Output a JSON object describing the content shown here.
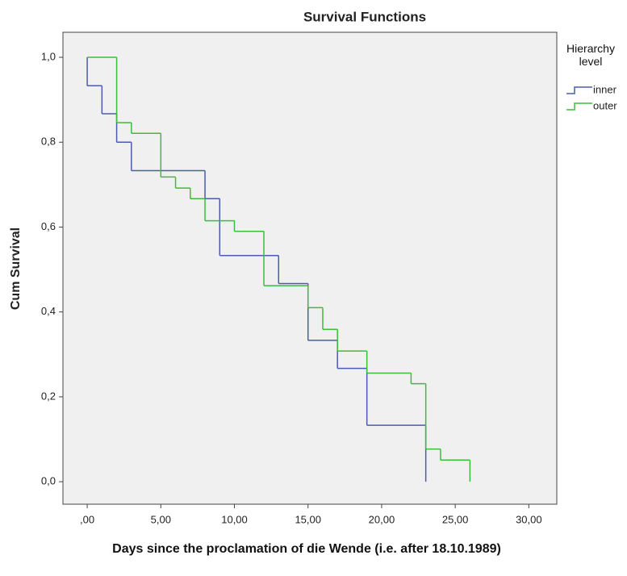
{
  "chart_data": {
    "type": "step",
    "title": "Survival Functions",
    "x_label": "Days since the proclamation of die Wende (i.e. after 18.10.1989)",
    "y_label": "Cum Survival",
    "legend_title": "Hierarchy level",
    "legend": "top-right-outside",
    "xlim": [
      -1.65,
      31.9
    ],
    "ylim": [
      -0.053,
      1.059
    ],
    "xticks": [
      {
        "value": 0,
        "label": ",00"
      },
      {
        "value": 5,
        "label": "5,00"
      },
      {
        "value": 10,
        "label": "10,00"
      },
      {
        "value": 15,
        "label": "15,00"
      },
      {
        "value": 20,
        "label": "20,00"
      },
      {
        "value": 25,
        "label": "25,00"
      },
      {
        "value": 30,
        "label": "30,00"
      }
    ],
    "yticks": [
      {
        "value": 0,
        "label": "0,0"
      },
      {
        "value": 0.2,
        "label": "0,2"
      },
      {
        "value": 0.4,
        "label": "0,4"
      },
      {
        "value": 0.6,
        "label": "0,6"
      },
      {
        "value": 0.8,
        "label": "0,8"
      },
      {
        "value": 1,
        "label": "1,0"
      }
    ],
    "series": [
      {
        "name": "inner",
        "color": "#4a5cad",
        "x": [
          0,
          0,
          1,
          2,
          3,
          8,
          9,
          13,
          15,
          17,
          19,
          23
        ],
        "values": [
          1,
          0.933,
          0.867,
          0.8,
          0.733,
          0.667,
          0.533,
          0.467,
          0.333,
          0.267,
          0.133,
          0
        ]
      },
      {
        "name": "outer",
        "color": "#3cbd3c",
        "x": [
          0,
          2,
          3,
          5,
          6,
          7,
          8,
          10,
          12,
          15,
          16,
          17,
          19,
          22,
          23,
          24,
          26
        ],
        "values": [
          1,
          0.846,
          0.821,
          0.718,
          0.692,
          0.667,
          0.615,
          0.59,
          0.462,
          0.41,
          0.359,
          0.308,
          0.256,
          0.231,
          0.077,
          0.051,
          0
        ]
      }
    ]
  }
}
